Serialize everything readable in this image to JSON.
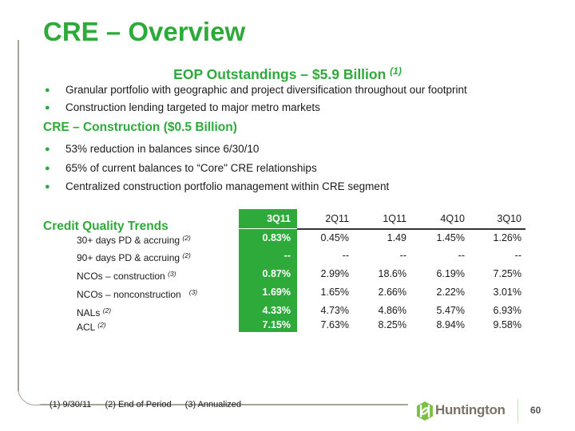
{
  "colors": {
    "accent": "#2eaa3a",
    "frame": "#a9a39a",
    "logo_text": "#7a7168"
  },
  "title": "CRE – Overview",
  "subtitle": {
    "text": "EOP Outstandings – $5.9 Billion",
    "note": "(1)"
  },
  "bullets_top": [
    "Granular portfolio with geographic and project diversification throughout our footprint",
    "Construction lending targeted to major metro markets"
  ],
  "construction": {
    "heading": "CRE – Construction ($0.5 Billion)",
    "bullets": [
      "53% reduction in balances since 6/30/10",
      "65% of current balances to “Core\" CRE relationships",
      "Centralized construction portfolio management within CRE segment"
    ]
  },
  "credit": {
    "heading": "Credit Quality Trends",
    "columns": [
      "3Q11",
      "2Q11",
      "1Q11",
      "4Q10",
      "3Q10"
    ],
    "rows": [
      {
        "label": "30+ days PD & accruing",
        "note": "(2)",
        "values": [
          "0.83%",
          "0.45%",
          "1.49",
          "1.45%",
          "1.26%"
        ]
      },
      {
        "label": "90+ days PD & accruing",
        "note": "(2)",
        "values": [
          "--",
          "--",
          "--",
          "--",
          "--"
        ]
      },
      {
        "label": "NCOs – construction",
        "note": "(3)",
        "values": [
          "0.87%",
          "2.99%",
          "18.6%",
          "6.19%",
          "7.25%"
        ]
      },
      {
        "label": "NCOs – nonconstruction",
        "note": "(3)",
        "values": [
          "1.69%",
          "1.65%",
          "2.66%",
          "2.22%",
          "3.01%"
        ]
      },
      {
        "label": "NALs",
        "note": "(2)",
        "values": [
          "4.33%",
          "4.73%",
          "4.86%",
          "5.47%",
          "6.93%"
        ]
      },
      {
        "label": "ACL",
        "note": "(2)",
        "values": [
          "7.15%",
          "7.63%",
          "8.25%",
          "8.94%",
          "9.58%"
        ]
      }
    ]
  },
  "footnotes": [
    "(1)  9/30/11",
    "(2) End of Period",
    "(3) Annualized"
  ],
  "logo": {
    "text": "Huntington",
    "icon": "huntington-logo-icon"
  },
  "page_number": "60"
}
